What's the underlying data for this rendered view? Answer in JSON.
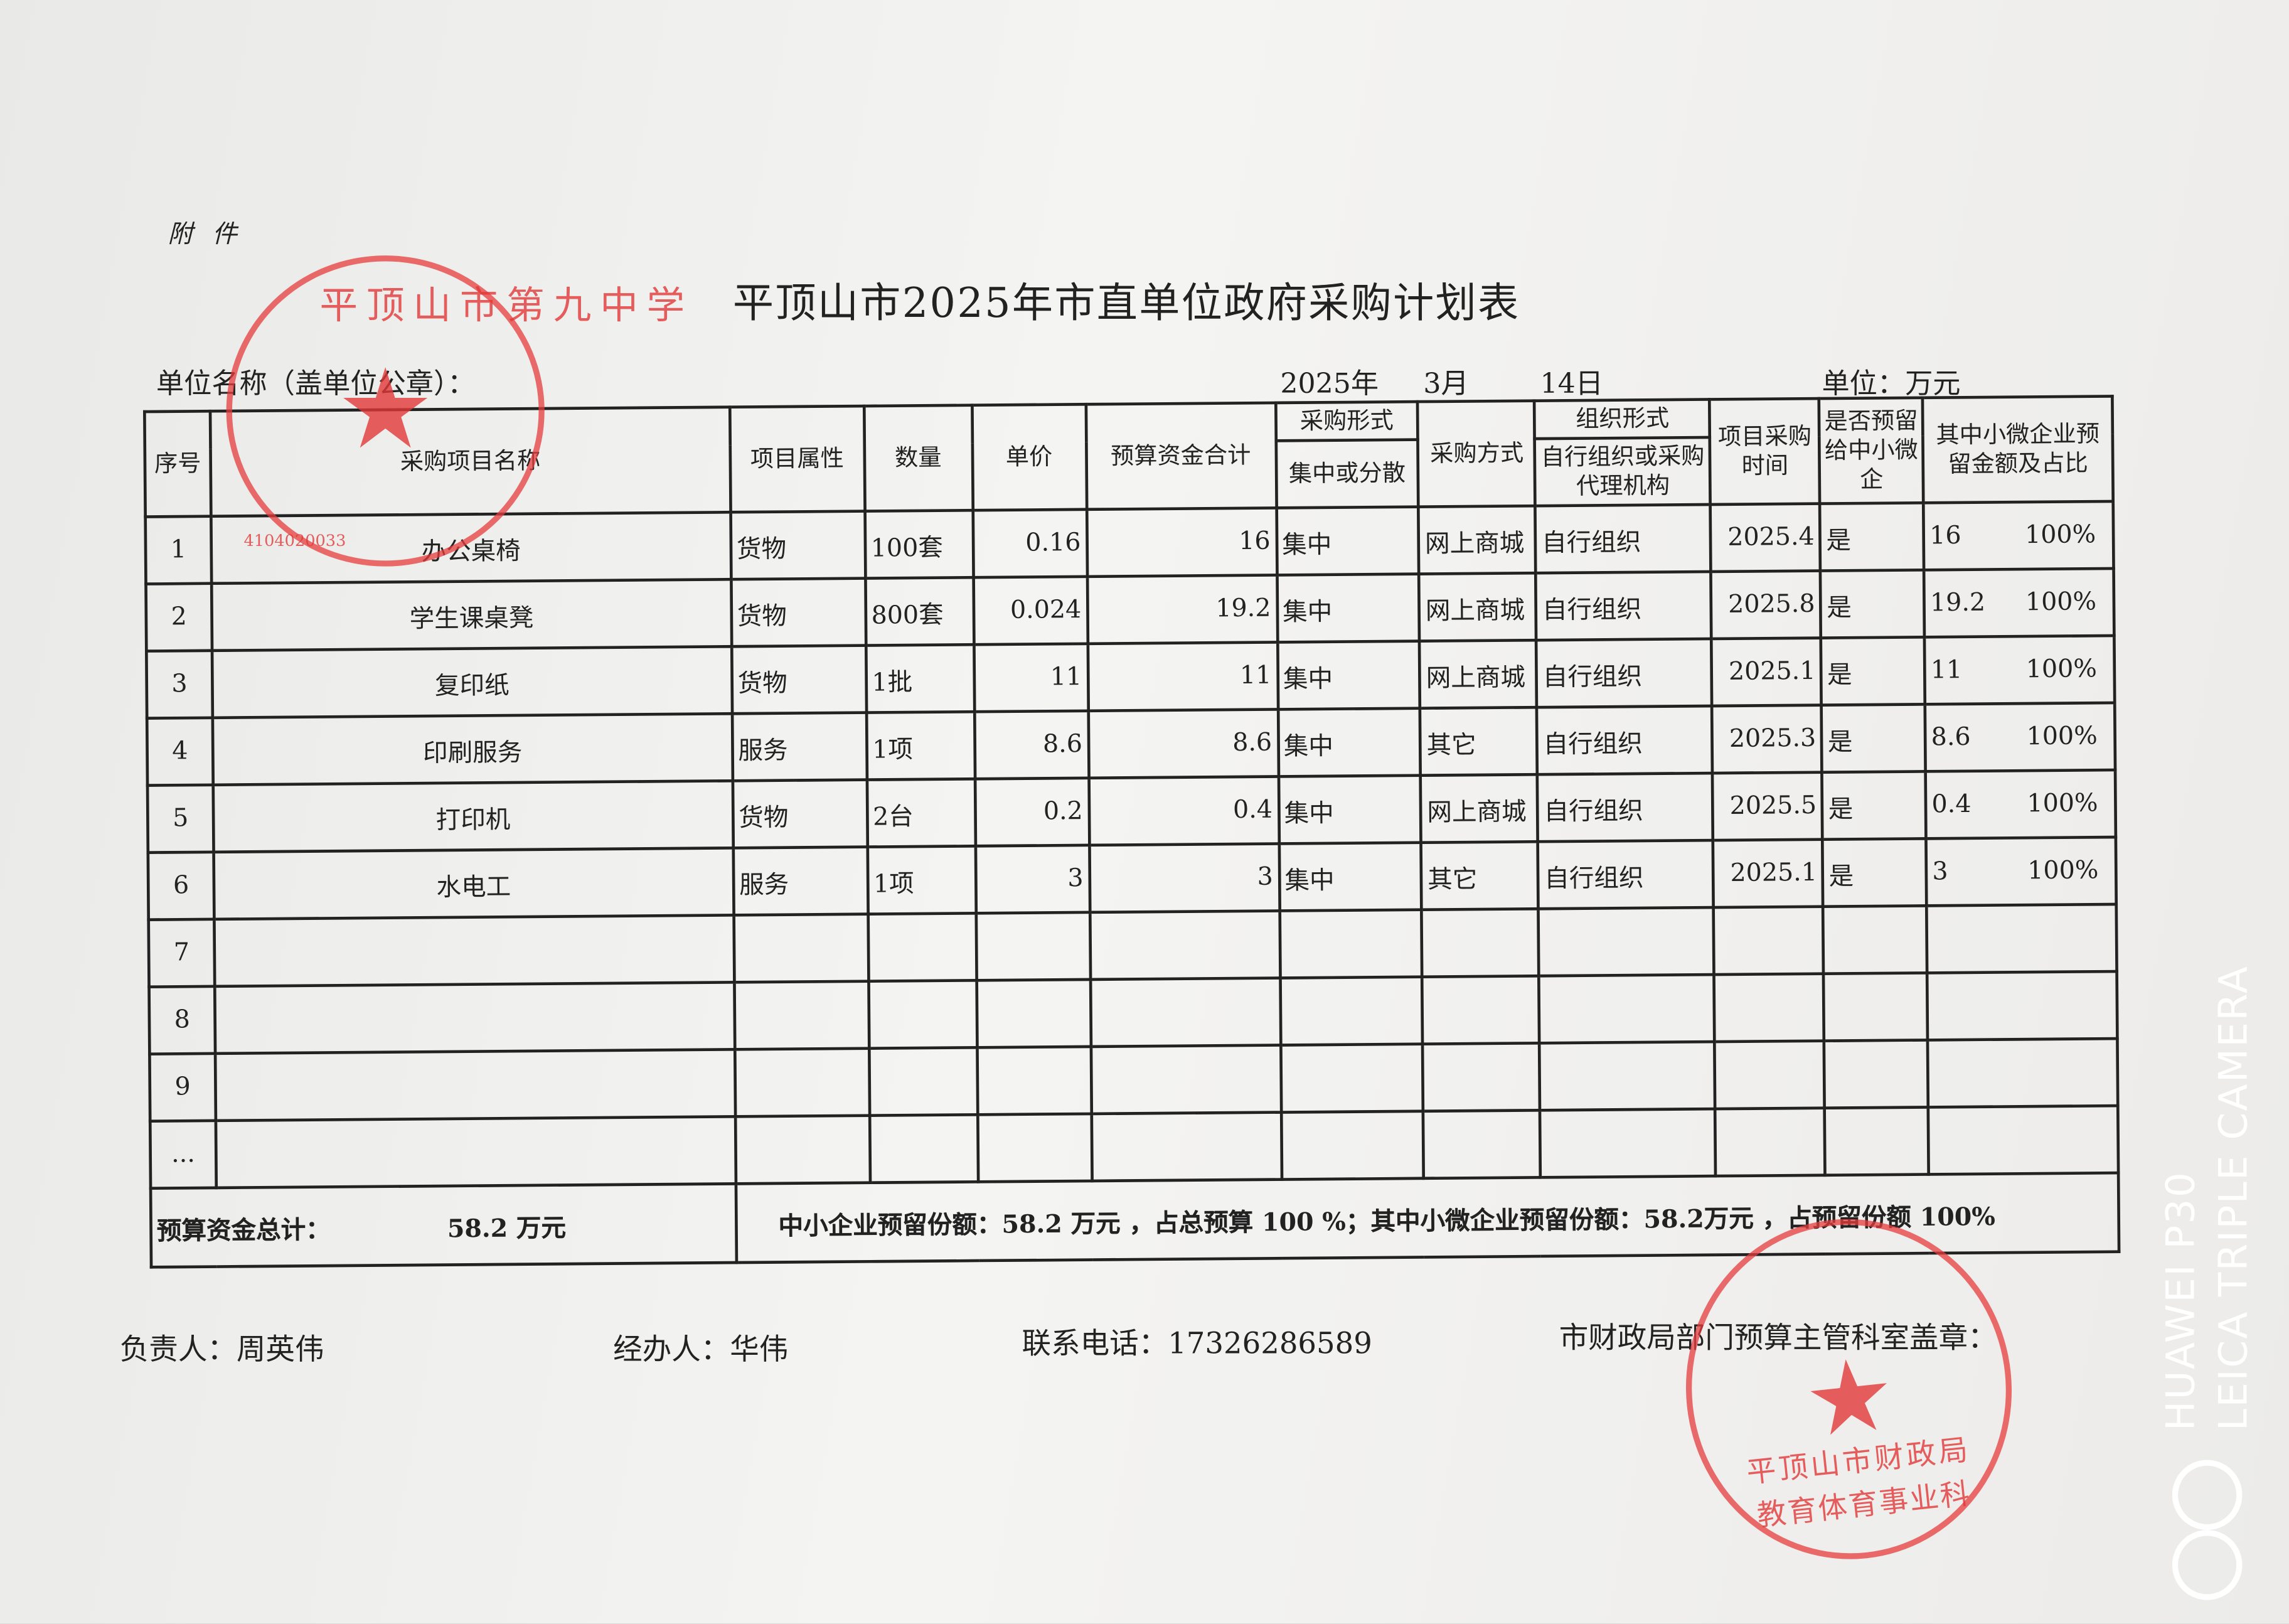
{
  "attachment_label": "附 件",
  "title": "平顶山市2025年市直单位政府采购计划表",
  "unit_name_label": "单位名称（盖单位公章）：",
  "date": {
    "year": "2025年",
    "month": "3月",
    "day": "14日"
  },
  "currency_unit": "单位：万元",
  "headers": {
    "seq": "序号",
    "name": "采购项目名称",
    "attr": "项目属性",
    "qty": "数量",
    "price": "单价",
    "budget": "预算资金合计",
    "form_top": "采购形式",
    "form_sub": "集中或分散",
    "method": "采购方式",
    "org_top": "组织形式",
    "org_sub": "自行组织或采购代理机构",
    "time": "项目采购时间",
    "reserved": "是否预留给中小微企",
    "micro": "其中小微企业预留金额及占比"
  },
  "rows": [
    {
      "seq": "1",
      "name": "办公桌椅",
      "attr": "货物",
      "qty": "100套",
      "price": "0.16",
      "budget": "16",
      "form": "集中",
      "method": "网上商城",
      "org": "自行组织",
      "time": "2025.4",
      "reserved": "是",
      "micro_amount": "16",
      "micro_pct": "100%"
    },
    {
      "seq": "2",
      "name": "学生课桌凳",
      "attr": "货物",
      "qty": "800套",
      "price": "0.024",
      "budget": "19.2",
      "form": "集中",
      "method": "网上商城",
      "org": "自行组织",
      "time": "2025.8",
      "reserved": "是",
      "micro_amount": "19.2",
      "micro_pct": "100%"
    },
    {
      "seq": "3",
      "name": "复印纸",
      "attr": "货物",
      "qty": "1批",
      "price": "11",
      "budget": "11",
      "form": "集中",
      "method": "网上商城",
      "org": "自行组织",
      "time": "2025.1",
      "reserved": "是",
      "micro_amount": "11",
      "micro_pct": "100%"
    },
    {
      "seq": "4",
      "name": "印刷服务",
      "attr": "服务",
      "qty": "1项",
      "price": "8.6",
      "budget": "8.6",
      "form": "集中",
      "method": "其它",
      "org": "自行组织",
      "time": "2025.3",
      "reserved": "是",
      "micro_amount": "8.6",
      "micro_pct": "100%"
    },
    {
      "seq": "5",
      "name": "打印机",
      "attr": "货物",
      "qty": "2台",
      "price": "0.2",
      "budget": "0.4",
      "form": "集中",
      "method": "网上商城",
      "org": "自行组织",
      "time": "2025.5",
      "reserved": "是",
      "micro_amount": "0.4",
      "micro_pct": "100%"
    },
    {
      "seq": "6",
      "name": "水电工",
      "attr": "服务",
      "qty": "1项",
      "price": "3",
      "budget": "3",
      "form": "集中",
      "method": "其它",
      "org": "自行组织",
      "time": "2025.1",
      "reserved": "是",
      "micro_amount": "3",
      "micro_pct": "100%"
    },
    {
      "seq": "7"
    },
    {
      "seq": "8"
    },
    {
      "seq": "9"
    },
    {
      "seq": "..."
    }
  ],
  "summary": {
    "total_label": "预算资金总计：",
    "total_value": "58.2 万元",
    "sme_text": "中小企业预留份额：58.2 万元 ，占总预算 100 %；其中小微企业预留份额：58.2万元 ，占预留份额 100%"
  },
  "footer": {
    "responsible": "负责人：周英伟",
    "handler": "经办人：华伟",
    "phone": "联系电话：17326286589",
    "finance_seal": "市财政局部门预算主管科室盖章："
  },
  "stamps": {
    "school": "平顶山市第九中学",
    "school_code": "4104020033",
    "finance_top": "平顶山市财政局",
    "finance_bottom": "教育体育事业科"
  },
  "watermark": {
    "line1": "HUAWEI P30",
    "line2": "LEICA TRIPLE CAMERA"
  },
  "colors": {
    "stamp": "#e33b3b",
    "ink": "#222222"
  }
}
